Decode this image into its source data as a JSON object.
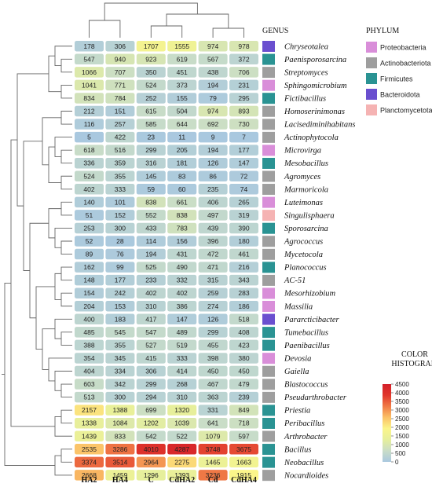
{
  "chart_data": {
    "type": "heatmap",
    "columns": [
      "HA2",
      "HA4",
      "C",
      "CdHA2",
      "Cd",
      "CdHA4"
    ],
    "rows": [
      {
        "genus": "Chryseotalea",
        "phylum": "Bacteroidota",
        "values": [
          178,
          306,
          1707,
          1555,
          974,
          978
        ]
      },
      {
        "genus": "Paenisporosarcina",
        "phylum": "Firmicutes",
        "values": [
          547,
          940,
          923,
          619,
          567,
          372
        ]
      },
      {
        "genus": "Streptomyces",
        "phylum": "Actinobacteriota",
        "values": [
          1066,
          707,
          350,
          451,
          438,
          706
        ]
      },
      {
        "genus": "Sphingomicrobium",
        "phylum": "Proteobacteria",
        "values": [
          1041,
          771,
          524,
          373,
          194,
          231
        ]
      },
      {
        "genus": "Fictibacillus",
        "phylum": "Firmicutes",
        "values": [
          834,
          784,
          252,
          155,
          79,
          295
        ]
      },
      {
        "genus": "Homoserinimonas",
        "phylum": "Actinobacteriota",
        "values": [
          212,
          151,
          615,
          504,
          974,
          893
        ]
      },
      {
        "genus": "Lacisediminihabitans",
        "phylum": "Actinobacteriota",
        "values": [
          116,
          257,
          585,
          644,
          692,
          730
        ]
      },
      {
        "genus": "Actinophytocola",
        "phylum": "Actinobacteriota",
        "values": [
          5,
          422,
          23,
          11,
          9,
          7
        ]
      },
      {
        "genus": "Microvirga",
        "phylum": "Proteobacteria",
        "values": [
          618,
          516,
          299,
          205,
          194,
          177
        ]
      },
      {
        "genus": "Mesobacillus",
        "phylum": "Firmicutes",
        "values": [
          336,
          359,
          316,
          181,
          126,
          147
        ]
      },
      {
        "genus": "Agromyces",
        "phylum": "Actinobacteriota",
        "values": [
          524,
          355,
          145,
          83,
          86,
          72
        ]
      },
      {
        "genus": "Marmoricola",
        "phylum": "Actinobacteriota",
        "values": [
          402,
          333,
          59,
          60,
          235,
          74
        ]
      },
      {
        "genus": "Luteimonas",
        "phylum": "Proteobacteria",
        "values": [
          140,
          101,
          838,
          661,
          406,
          265
        ]
      },
      {
        "genus": "Singulisphaera",
        "phylum": "Planctomycetota",
        "values": [
          51,
          152,
          552,
          838,
          497,
          319
        ]
      },
      {
        "genus": "Sporosarcina",
        "phylum": "Firmicutes",
        "values": [
          253,
          300,
          433,
          783,
          439,
          390
        ]
      },
      {
        "genus": "Agrococcus",
        "phylum": "Actinobacteriota",
        "values": [
          52,
          28,
          114,
          156,
          396,
          180
        ]
      },
      {
        "genus": "Mycetocola",
        "phylum": "Actinobacteriota",
        "values": [
          89,
          76,
          194,
          431,
          472,
          461
        ]
      },
      {
        "genus": "Planococcus",
        "phylum": "Firmicutes",
        "values": [
          162,
          99,
          525,
          490,
          471,
          216
        ]
      },
      {
        "genus": "AC-51",
        "phylum": "Actinobacteriota",
        "values": [
          148,
          177,
          233,
          332,
          315,
          343
        ]
      },
      {
        "genus": "Mesorhizobium",
        "phylum": "Proteobacteria",
        "values": [
          154,
          242,
          402,
          402,
          259,
          283
        ]
      },
      {
        "genus": "Massilia",
        "phylum": "Proteobacteria",
        "values": [
          204,
          153,
          310,
          386,
          274,
          186
        ]
      },
      {
        "genus": "Pararcticibacter",
        "phylum": "Bacteroidota",
        "values": [
          400,
          183,
          417,
          147,
          126,
          518
        ]
      },
      {
        "genus": "Tumebacillus",
        "phylum": "Firmicutes",
        "values": [
          485,
          545,
          547,
          489,
          299,
          408
        ]
      },
      {
        "genus": "Paenibacillus",
        "phylum": "Firmicutes",
        "values": [
          388,
          355,
          527,
          519,
          455,
          423
        ]
      },
      {
        "genus": "Devosia",
        "phylum": "Proteobacteria",
        "values": [
          354,
          345,
          415,
          333,
          398,
          380
        ]
      },
      {
        "genus": "Gaiella",
        "phylum": "Actinobacteriota",
        "values": [
          404,
          334,
          306,
          414,
          450,
          450
        ]
      },
      {
        "genus": "Blastococcus",
        "phylum": "Actinobacteriota",
        "values": [
          603,
          342,
          299,
          268,
          467,
          479
        ]
      },
      {
        "genus": "Pseudarthrobacter",
        "phylum": "Actinobacteriota",
        "values": [
          513,
          300,
          294,
          310,
          363,
          239
        ]
      },
      {
        "genus": "Priestia",
        "phylum": "Firmicutes",
        "values": [
          2157,
          1388,
          699,
          1320,
          331,
          849
        ]
      },
      {
        "genus": "Peribacillus",
        "phylum": "Firmicutes",
        "values": [
          1338,
          1084,
          1202,
          1039,
          641,
          718
        ]
      },
      {
        "genus": "Arthrobacter",
        "phylum": "Actinobacteriota",
        "values": [
          1439,
          833,
          542,
          522,
          1079,
          597
        ]
      },
      {
        "genus": "Bacillus",
        "phylum": "Firmicutes",
        "values": [
          2535,
          3286,
          4010,
          4287,
          3748,
          3675
        ]
      },
      {
        "genus": "Neobacillus",
        "phylum": "Firmicutes",
        "values": [
          3374,
          3514,
          2964,
          2275,
          1465,
          1663
        ]
      },
      {
        "genus": "Nocardioides",
        "phylum": "Actinobacteriota",
        "values": [
          2668,
          1459,
          1296,
          1393,
          3236,
          1915
        ]
      }
    ],
    "genus_header": "GENUS",
    "phylum_header": "PHYLUM",
    "phyla": [
      {
        "name": "Proteobacteria",
        "color": "#d98ed9"
      },
      {
        "name": "Actinobacteriota",
        "color": "#9e9e9e"
      },
      {
        "name": "Firmicutes",
        "color": "#2a9393"
      },
      {
        "name": "Bacteroidota",
        "color": "#6a4fcf"
      },
      {
        "name": "Planctomycetota",
        "color": "#f5b3b3"
      }
    ],
    "colorbar": {
      "title_line1": "COLOR",
      "title_line2": "HISTOGRAM",
      "min": 0,
      "max": 4500,
      "ticks": [
        "0",
        "500",
        "1000",
        "1500",
        "2000",
        "2500",
        "3000",
        "3500",
        "4000",
        "4500"
      ],
      "stops": [
        "#a9c8df",
        "#c9ddc7",
        "#e6ef9c",
        "#fbf58a",
        "#fbc167",
        "#f07a46",
        "#e0362b",
        "#d4202a"
      ]
    },
    "legend_position": "right"
  }
}
